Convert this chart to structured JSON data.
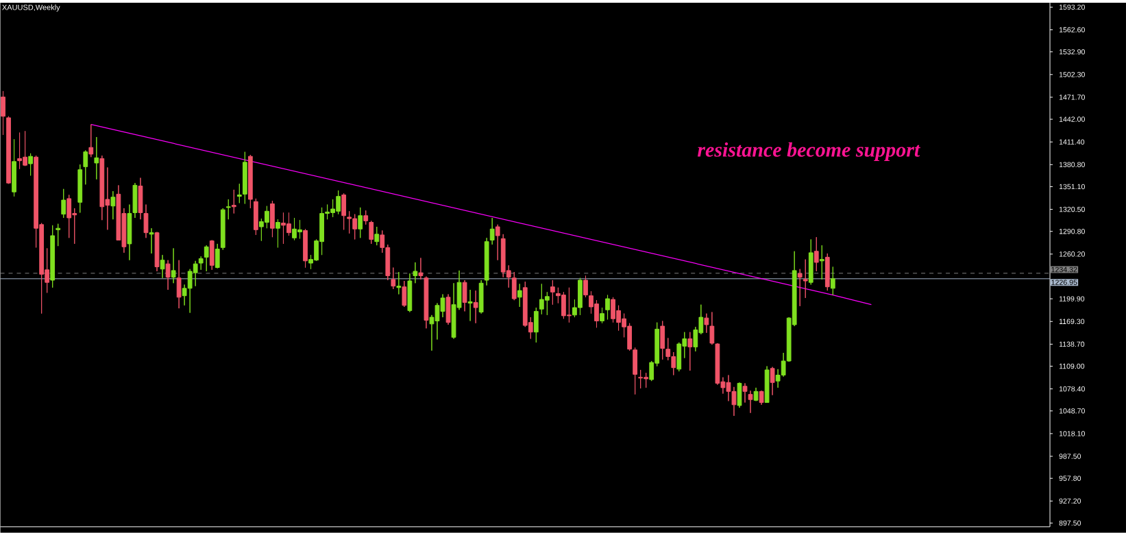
{
  "chart_data": {
    "type": "candlestick",
    "title": "XAUUSD,Weekly",
    "annotations": [
      "resistance become support"
    ],
    "categories": [
      null,
      null,
      null,
      null,
      null,
      null,
      null,
      null,
      null,
      null,
      null,
      null,
      null,
      null,
      null,
      null,
      null,
      null,
      null,
      null,
      null,
      null,
      null,
      null,
      null,
      null,
      null,
      null,
      null,
      null,
      null,
      null,
      null,
      null,
      null,
      null,
      null,
      null,
      null,
      null,
      null,
      null,
      null,
      null,
      null,
      null,
      null,
      null,
      null,
      null,
      null,
      null,
      null,
      null,
      null,
      null,
      null,
      null,
      null,
      null,
      null,
      null,
      null,
      null,
      null,
      null,
      null,
      null,
      null,
      null,
      null,
      null,
      null,
      null,
      null,
      null,
      null,
      null,
      null,
      null,
      null,
      null,
      null,
      null,
      null,
      null,
      null,
      null,
      null,
      null,
      null,
      null,
      null,
      null,
      null,
      null,
      null,
      null,
      null,
      null,
      null,
      null,
      null,
      null,
      null,
      null,
      null,
      null,
      null,
      null,
      null,
      null,
      null,
      null,
      null,
      null,
      null,
      null,
      null,
      null,
      null,
      null,
      null,
      null,
      null,
      null,
      null,
      null,
      null,
      null,
      null,
      null,
      null,
      null,
      null,
      null,
      null,
      null,
      null,
      null,
      null,
      null,
      null,
      null,
      null,
      null,
      null,
      null,
      null,
      null,
      null,
      null,
      null,
      null,
      null,
      null,
      null,
      null,
      null,
      null,
      null,
      null,
      null,
      null,
      null,
      null,
      null,
      null,
      null,
      null,
      null,
      null,
      null,
      null,
      null,
      null,
      null,
      null,
      null,
      null,
      null,
      null,
      null,
      null,
      null,
      null,
      null,
      null,
      null,
      null,
      null
    ],
    "ohlc": [
      [
        1472,
        1480,
        1421,
        1446
      ],
      [
        1444,
        1446,
        1355,
        1356
      ],
      [
        1344,
        1415,
        1338,
        1385
      ],
      [
        1389,
        1424,
        1375,
        1386
      ],
      [
        1391,
        1426,
        1379,
        1380
      ],
      [
        1382,
        1396,
        1366,
        1392
      ],
      [
        1391,
        1393,
        1269,
        1295
      ],
      [
        1300,
        1302,
        1180,
        1233
      ],
      [
        1239,
        1268,
        1208,
        1222
      ],
      [
        1225,
        1299,
        1215,
        1285
      ],
      [
        1293,
        1301,
        1271,
        1295
      ],
      [
        1314,
        1348,
        1309,
        1333
      ],
      [
        1335,
        1340,
        1282,
        1309
      ],
      [
        1315,
        1322,
        1274,
        1313
      ],
      [
        1330,
        1381,
        1316,
        1374
      ],
      [
        1378,
        1400,
        1354,
        1398
      ],
      [
        1404,
        1435,
        1391,
        1395
      ],
      [
        1383,
        1418,
        1361,
        1390
      ],
      [
        1389,
        1393,
        1306,
        1324
      ],
      [
        1334,
        1377,
        1293,
        1326
      ],
      [
        1325,
        1345,
        1307,
        1337
      ],
      [
        1341,
        1353,
        1279,
        1279
      ],
      [
        1315,
        1322,
        1262,
        1270
      ],
      [
        1274,
        1327,
        1252,
        1315
      ],
      [
        1316,
        1356,
        1309,
        1353
      ],
      [
        1352,
        1363,
        1307,
        1316
      ],
      [
        1315,
        1327,
        1282,
        1289
      ],
      [
        1287,
        1295,
        1261,
        1289
      ],
      [
        1289,
        1290,
        1237,
        1243
      ],
      [
        1240,
        1259,
        1228,
        1252
      ],
      [
        1247,
        1252,
        1212,
        1229
      ],
      [
        1229,
        1268,
        1221,
        1238
      ],
      [
        1228,
        1252,
        1187,
        1202
      ],
      [
        1204,
        1219,
        1191,
        1214
      ],
      [
        1214,
        1240,
        1181,
        1237
      ],
      [
        1235,
        1251,
        1217,
        1247
      ],
      [
        1248,
        1257,
        1239,
        1254
      ],
      [
        1256,
        1272,
        1237,
        1270
      ],
      [
        1278,
        1279,
        1239,
        1245
      ],
      [
        1242,
        1274,
        1241,
        1267
      ],
      [
        1269,
        1322,
        1266,
        1320
      ],
      [
        1323,
        1334,
        1307,
        1324
      ],
      [
        1326,
        1347,
        1315,
        1324
      ],
      [
        1338,
        1355,
        1329,
        1340
      ],
      [
        1341,
        1398,
        1328,
        1384
      ],
      [
        1392,
        1394,
        1322,
        1334
      ],
      [
        1331,
        1335,
        1286,
        1293
      ],
      [
        1297,
        1308,
        1278,
        1304
      ],
      [
        1303,
        1325,
        1295,
        1318
      ],
      [
        1328,
        1332,
        1283,
        1295
      ],
      [
        1295,
        1307,
        1269,
        1303
      ],
      [
        1302,
        1316,
        1274,
        1299
      ],
      [
        1301,
        1316,
        1285,
        1289
      ],
      [
        1282,
        1309,
        1279,
        1294
      ],
      [
        1290,
        1306,
        1281,
        1293
      ],
      [
        1292,
        1294,
        1242,
        1251
      ],
      [
        1248,
        1259,
        1240,
        1253
      ],
      [
        1252,
        1280,
        1251,
        1278
      ],
      [
        1277,
        1323,
        1259,
        1315
      ],
      [
        1315,
        1327,
        1307,
        1317
      ],
      [
        1316,
        1334,
        1310,
        1321
      ],
      [
        1318,
        1346,
        1314,
        1338
      ],
      [
        1340,
        1342,
        1293,
        1312
      ],
      [
        1310,
        1318,
        1288,
        1308
      ],
      [
        1308,
        1314,
        1280,
        1294
      ],
      [
        1294,
        1323,
        1282,
        1312
      ],
      [
        1312,
        1319,
        1300,
        1305
      ],
      [
        1303,
        1305,
        1274,
        1280
      ],
      [
        1277,
        1297,
        1272,
        1287
      ],
      [
        1286,
        1292,
        1262,
        1269
      ],
      [
        1269,
        1273,
        1225,
        1231
      ],
      [
        1226,
        1242,
        1213,
        1217
      ],
      [
        1215,
        1236,
        1206,
        1217
      ],
      [
        1216,
        1224,
        1189,
        1191
      ],
      [
        1184,
        1234,
        1182,
        1224
      ],
      [
        1231,
        1249,
        1221,
        1237
      ],
      [
        1235,
        1255,
        1226,
        1231
      ],
      [
        1228,
        1230,
        1160,
        1171
      ],
      [
        1166,
        1178,
        1130,
        1175
      ],
      [
        1170,
        1194,
        1145,
        1191
      ],
      [
        1183,
        1206,
        1175,
        1201
      ],
      [
        1202,
        1206,
        1165,
        1168
      ],
      [
        1148,
        1221,
        1146,
        1192
      ],
      [
        1188,
        1238,
        1185,
        1222
      ],
      [
        1222,
        1225,
        1183,
        1195
      ],
      [
        1194,
        1212,
        1170,
        1196
      ],
      [
        1195,
        1211,
        1167,
        1188
      ],
      [
        1182,
        1225,
        1180,
        1221
      ],
      [
        1225,
        1282,
        1218,
        1277
      ],
      [
        1279,
        1309,
        1273,
        1294
      ],
      [
        1297,
        1300,
        1252,
        1285
      ],
      [
        1281,
        1287,
        1229,
        1236
      ],
      [
        1238,
        1245,
        1215,
        1229
      ],
      [
        1228,
        1236,
        1198,
        1200
      ],
      [
        1202,
        1220,
        1189,
        1211
      ],
      [
        1215,
        1223,
        1162,
        1164
      ],
      [
        1168,
        1175,
        1146,
        1155
      ],
      [
        1155,
        1188,
        1141,
        1183
      ],
      [
        1186,
        1220,
        1179,
        1199
      ],
      [
        1198,
        1209,
        1178,
        1203
      ],
      [
        1216,
        1225,
        1192,
        1209
      ],
      [
        1207,
        1215,
        1194,
        1204
      ],
      [
        1205,
        1209,
        1173,
        1177
      ],
      [
        1178,
        1215,
        1168,
        1177
      ],
      [
        1178,
        1199,
        1175,
        1188
      ],
      [
        1188,
        1228,
        1178,
        1225
      ],
      [
        1225,
        1231,
        1202,
        1205
      ],
      [
        1204,
        1210,
        1180,
        1189
      ],
      [
        1193,
        1198,
        1161,
        1170
      ],
      [
        1170,
        1188,
        1167,
        1180
      ],
      [
        1185,
        1205,
        1172,
        1200
      ],
      [
        1199,
        1202,
        1168,
        1173
      ],
      [
        1184,
        1191,
        1157,
        1168
      ],
      [
        1173,
        1180,
        1148,
        1162
      ],
      [
        1163,
        1167,
        1130,
        1132
      ],
      [
        1131,
        1134,
        1071,
        1098
      ],
      [
        1094,
        1104,
        1079,
        1093
      ],
      [
        1094,
        1100,
        1080,
        1092
      ],
      [
        1091,
        1116,
        1089,
        1114
      ],
      [
        1113,
        1168,
        1109,
        1159
      ],
      [
        1163,
        1170,
        1118,
        1133
      ],
      [
        1132,
        1147,
        1117,
        1122
      ],
      [
        1122,
        1128,
        1097,
        1107
      ],
      [
        1105,
        1141,
        1102,
        1139
      ],
      [
        1136,
        1155,
        1120,
        1146
      ],
      [
        1146,
        1155,
        1103,
        1135
      ],
      [
        1135,
        1162,
        1129,
        1158
      ],
      [
        1154,
        1192,
        1152,
        1175
      ],
      [
        1174,
        1180,
        1154,
        1165
      ],
      [
        1163,
        1182,
        1138,
        1140
      ],
      [
        1139,
        1140,
        1084,
        1086
      ],
      [
        1088,
        1094,
        1072,
        1080
      ],
      [
        1087,
        1097,
        1062,
        1075
      ],
      [
        1075,
        1081,
        1042,
        1057
      ],
      [
        1056,
        1087,
        1053,
        1086
      ],
      [
        1082,
        1086,
        1060,
        1075
      ],
      [
        1071,
        1076,
        1046,
        1064
      ],
      [
        1063,
        1080,
        1062,
        1075
      ],
      [
        1075,
        1076,
        1057,
        1060
      ],
      [
        1060,
        1109,
        1060,
        1104
      ],
      [
        1106,
        1108,
        1070,
        1087
      ],
      [
        1089,
        1105,
        1080,
        1097
      ],
      [
        1097,
        1127,
        1095,
        1116
      ],
      [
        1116,
        1175,
        1115,
        1174
      ],
      [
        1165,
        1264,
        1163,
        1238
      ],
      [
        1234,
        1240,
        1190,
        1229
      ],
      [
        1226,
        1253,
        1201,
        1224
      ],
      [
        1222,
        1280,
        1219,
        1262
      ],
      [
        1264,
        1283,
        1237,
        1249
      ],
      [
        1251,
        1272,
        1226,
        1253
      ],
      [
        1256,
        1261,
        1211,
        1216
      ],
      [
        1214,
        1243,
        1205,
        1227
      ],
      null,
      null,
      null,
      null,
      null,
      null,
      null,
      null,
      null,
      null,
      null,
      null,
      null,
      null,
      null,
      null,
      null,
      null,
      null,
      null,
      null,
      null,
      null,
      null,
      null,
      null,
      null,
      null,
      null,
      null,
      null,
      null,
      null,
      null,
      null,
      null,
      null,
      null,
      null
    ],
    "colors": [
      "#f05468",
      "#f05468",
      "#7fe01f",
      "#f05468",
      "#f05468",
      "#7fe01f",
      "#f05468",
      "#f05468",
      "#f05468",
      "#7fe01f",
      "#7fe01f",
      "#7fe01f",
      "#f05468",
      "#f05468",
      "#7fe01f",
      "#7fe01f",
      "#f05468",
      "#7fe01f",
      "#f05468",
      "#f05468",
      "#7fe01f",
      "#f05468",
      "#f05468",
      "#7fe01f",
      "#7fe01f",
      "#f05468",
      "#f05468",
      "#7fe01f",
      "#f05468",
      "#7fe01f",
      "#f05468",
      "#7fe01f",
      "#f05468",
      "#7fe01f",
      "#7fe01f",
      "#7fe01f",
      "#7fe01f",
      "#7fe01f",
      "#f05468",
      "#7fe01f",
      "#7fe01f",
      "#7fe01f",
      "#f05468",
      "#7fe01f",
      "#7fe01f",
      "#f05468",
      "#f05468",
      "#7fe01f",
      "#7fe01f",
      "#f05468",
      "#7fe01f",
      "#f05468",
      "#f05468",
      "#7fe01f",
      "#7fe01f",
      "#f05468",
      "#7fe01f",
      "#7fe01f",
      "#7fe01f",
      "#7fe01f",
      "#7fe01f",
      "#7fe01f",
      "#f05468",
      "#f05468",
      "#f05468",
      "#7fe01f",
      "#f05468",
      "#f05468",
      "#7fe01f",
      "#f05468",
      "#f05468",
      "#f05468",
      "#7fe01f",
      "#f05468",
      "#7fe01f",
      "#7fe01f",
      "#f05468",
      "#f05468",
      "#7fe01f",
      "#7fe01f",
      "#7fe01f",
      "#f05468",
      "#7fe01f",
      "#7fe01f",
      "#f05468",
      "#7fe01f",
      "#f05468",
      "#7fe01f",
      "#7fe01f",
      "#7fe01f",
      "#f05468",
      "#f05468",
      "#f05468",
      "#f05468",
      "#7fe01f",
      "#f05468",
      "#f05468",
      "#7fe01f",
      "#7fe01f",
      "#7fe01f",
      "#f05468",
      "#f05468",
      "#f05468",
      "#f05468",
      "#7fe01f",
      "#7fe01f",
      "#f05468",
      "#f05468",
      "#f05468",
      "#7fe01f",
      "#7fe01f",
      "#f05468",
      "#f05468",
      "#f05468",
      "#f05468",
      "#f05468",
      "#f05468",
      "#f05468",
      "#7fe01f",
      "#7fe01f",
      "#f05468",
      "#f05468",
      "#f05468",
      "#7fe01f",
      "#7fe01f",
      "#f05468",
      "#7fe01f",
      "#7fe01f",
      "#f05468",
      "#f05468",
      "#f05468",
      "#f05468",
      "#f05468",
      "#f05468",
      "#7fe01f",
      "#f05468",
      "#f05468",
      "#7fe01f",
      "#f05468",
      "#7fe01f",
      "#f05468",
      "#7fe01f",
      "#7fe01f",
      "#7fe01f",
      "#7fe01f",
      "#f05468",
      "#f05468",
      "#7fe01f",
      "#f05468",
      "#7fe01f",
      "#f05468",
      "#7fe01f",
      null,
      null,
      null,
      null,
      null,
      null,
      null,
      null,
      null,
      null,
      null,
      null,
      null,
      null,
      null,
      null,
      null,
      null,
      null,
      null,
      null,
      null,
      null,
      null,
      null,
      null,
      null,
      null,
      null,
      null,
      null,
      null,
      null,
      null,
      null,
      null,
      null,
      null,
      null
    ],
    "series": [
      {
        "type": "line",
        "color": "#ff00ff",
        "values": [
          null,
          null,
          null,
          null,
          null,
          null,
          null,
          null,
          null,
          null,
          null,
          null,
          null,
          null,
          null,
          null,
          1435,
          null,
          null,
          null,
          null,
          null,
          null,
          null,
          null,
          null,
          null,
          null,
          null,
          null,
          null,
          null,
          null,
          null,
          null,
          null,
          null,
          null,
          null,
          null,
          null,
          null,
          null,
          null,
          null,
          null,
          null,
          null,
          null,
          null,
          null,
          null,
          null,
          null,
          null,
          null,
          null,
          null,
          null,
          null,
          null,
          null,
          null,
          null,
          null,
          null,
          null,
          null,
          null,
          null,
          null,
          null,
          null,
          null,
          null,
          null,
          null,
          null,
          null,
          null,
          null,
          null,
          null,
          null,
          null,
          null,
          null,
          null,
          null,
          null,
          null,
          null,
          null,
          null,
          null,
          null,
          null,
          null,
          null,
          null,
          null,
          null,
          null,
          null,
          null,
          null,
          null,
          null,
          null,
          null,
          null,
          null,
          null,
          null,
          null,
          null,
          null,
          null,
          null,
          null,
          null,
          null,
          null,
          null,
          null,
          null,
          null,
          null,
          null,
          null,
          null,
          null,
          null,
          null,
          null,
          null,
          null,
          null,
          null,
          null,
          null,
          null,
          null,
          null,
          null,
          null,
          null,
          null,
          null,
          null,
          null,
          1205,
          null,
          null,
          null,
          null,
          null,
          null,
          1192,
          null,
          null,
          null,
          null,
          null,
          null,
          null,
          null,
          null,
          null,
          null,
          null,
          null,
          null,
          null,
          null,
          null,
          null,
          null,
          null,
          null,
          null,
          null,
          null,
          null,
          null,
          null,
          null,
          null,
          null,
          null,
          null
        ]
      }
    ],
    "ref_lines": [
      {
        "axis": "y",
        "value": 1234.32,
        "label": "1234.32",
        "color": "#808080",
        "line_style": "dashed"
      },
      {
        "axis": "y",
        "value": 1226.95,
        "label": "1226.95",
        "color": "#a8b8cc",
        "line_style": "solid"
      }
    ],
    "ylim": [
      892.5,
      1599
    ],
    "yticks": [
      {
        "value": 897.5,
        "label": "897.50"
      },
      {
        "value": 927.2,
        "label": "927.20"
      },
      {
        "value": 957.8,
        "label": "957.80"
      },
      {
        "value": 987.5,
        "label": "987.50"
      },
      {
        "value": 1018.1,
        "label": "1018.10"
      },
      {
        "value": 1048.7,
        "label": "1048.70"
      },
      {
        "value": 1078.4,
        "label": "1078.40"
      },
      {
        "value": 1109,
        "label": "1109.00"
      },
      {
        "value": 1138.7,
        "label": "1138.70"
      },
      {
        "value": 1169.3,
        "label": "1169.30"
      },
      {
        "value": 1199.9,
        "label": "1199.90"
      },
      {
        "value": 1260.2,
        "label": "1260.20"
      },
      {
        "value": 1290.8,
        "label": "1290.80"
      },
      {
        "value": 1320.5,
        "label": "1320.50"
      },
      {
        "value": 1351.1,
        "label": "1351.10"
      },
      {
        "value": 1380.8,
        "label": "1380.80"
      },
      {
        "value": 1411.4,
        "label": "1411.40"
      },
      {
        "value": 1442,
        "label": "1442.00"
      },
      {
        "value": 1471.7,
        "label": "1471.70"
      },
      {
        "value": 1502.3,
        "label": "1502.30"
      },
      {
        "value": 1532.9,
        "label": "1532.90"
      },
      {
        "value": 1562.6,
        "label": "1562.60"
      },
      {
        "value": 1593.2,
        "label": "1593.20"
      }
    ]
  }
}
